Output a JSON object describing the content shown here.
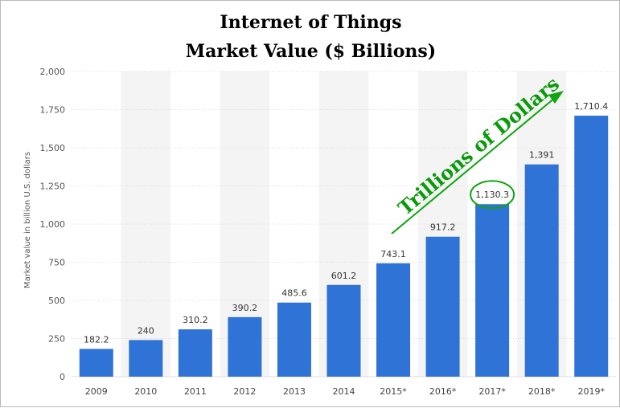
{
  "title_line1": "Internet of Things",
  "title_line2": "Market Value ($ Billions)",
  "colors": {
    "bar": "#2f73d6",
    "band": "#f4f4f4",
    "annotation": "#0ea50e",
    "grid": "#dcdcdc"
  },
  "annotation": {
    "text": "Trillions of Dollars",
    "highlighted_category": "2017*"
  },
  "chart_data": {
    "type": "bar",
    "categories": [
      "2009",
      "2010",
      "2011",
      "2012",
      "2013",
      "2014",
      "2015*",
      "2016*",
      "2017*",
      "2018*",
      "2019*"
    ],
    "values": [
      182.2,
      240,
      310.2,
      390.2,
      485.6,
      601.2,
      743.1,
      917.2,
      1130.3,
      1391,
      1710.4
    ],
    "data_labels": [
      "182.2",
      "240",
      "310.2",
      "390.2",
      "485.6",
      "601.2",
      "743.1",
      "917.2",
      "1,130.3",
      "1,391",
      "1,710.4"
    ],
    "ylabel": "Market value in billion U.S. dollars",
    "xlabel": "",
    "ylim": [
      0,
      2000
    ],
    "yticks": [
      0,
      250,
      500,
      750,
      1000,
      1250,
      1500,
      1750,
      2000
    ],
    "ytick_labels": [
      "0",
      "250",
      "500",
      "750",
      "1,000",
      "1,250",
      "1,500",
      "1,750",
      "2,000"
    ],
    "grid": true
  }
}
